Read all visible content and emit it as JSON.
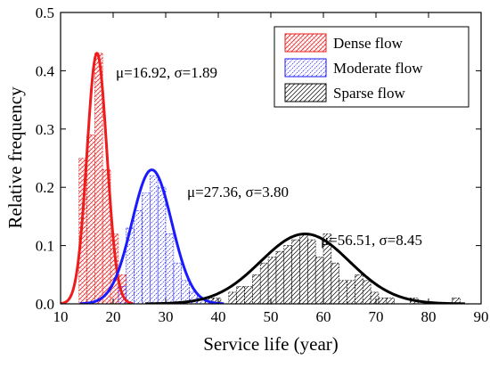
{
  "chart_data": {
    "type": "bar",
    "xlabel": "Service life (year)",
    "ylabel": "Relative frequency",
    "xlim": [
      10,
      90
    ],
    "ylim": [
      0,
      0.5
    ],
    "xticks": [
      10,
      20,
      30,
      40,
      50,
      60,
      70,
      80,
      90
    ],
    "yticks": [
      0.0,
      0.1,
      0.2,
      0.3,
      0.4,
      0.5
    ],
    "ytick_labels": [
      "0.0",
      "0.1",
      "0.2",
      "0.3",
      "0.4",
      "0.5"
    ],
    "grid": false,
    "legend_position": "top-right",
    "series": [
      {
        "name": "Dense flow",
        "color": "#ee1c1c",
        "hatch": "cross-dots",
        "bin_width": 1.5,
        "bins": [
          {
            "x": 14.25,
            "y": 0.25
          },
          {
            "x": 15.75,
            "y": 0.29
          },
          {
            "x": 17.25,
            "y": 0.43
          },
          {
            "x": 18.75,
            "y": 0.23
          },
          {
            "x": 20.25,
            "y": 0.12
          },
          {
            "x": 21.75,
            "y": 0.05
          }
        ],
        "fit": {
          "mu": 16.92,
          "sigma": 1.89,
          "peak": 0.43
        },
        "annotation": "μ=16.92, σ=1.89"
      },
      {
        "name": "Moderate flow",
        "color": "#1a1aff",
        "hatch": "diagonal-dots",
        "bin_width": 1.5,
        "bins": [
          {
            "x": 21.75,
            "y": 0.03
          },
          {
            "x": 23.25,
            "y": 0.13
          },
          {
            "x": 24.75,
            "y": 0.16
          },
          {
            "x": 26.25,
            "y": 0.19
          },
          {
            "x": 27.75,
            "y": 0.22
          },
          {
            "x": 29.25,
            "y": 0.2
          },
          {
            "x": 30.75,
            "y": 0.12
          },
          {
            "x": 32.25,
            "y": 0.07
          },
          {
            "x": 33.75,
            "y": 0.04
          },
          {
            "x": 35.25,
            "y": 0.02
          },
          {
            "x": 36.75,
            "y": 0.01
          }
        ],
        "fit": {
          "mu": 27.36,
          "sigma": 3.8,
          "peak": 0.23
        },
        "annotation": "μ=27.36, σ=3.80"
      },
      {
        "name": "Sparse flow",
        "color": "#000000",
        "hatch": "diagonal",
        "bin_width": 1.5,
        "bins": [
          {
            "x": 38.25,
            "y": 0.01
          },
          {
            "x": 39.75,
            "y": 0.01
          },
          {
            "x": 42.75,
            "y": 0.02
          },
          {
            "x": 44.25,
            "y": 0.03
          },
          {
            "x": 45.75,
            "y": 0.03
          },
          {
            "x": 47.25,
            "y": 0.05
          },
          {
            "x": 48.75,
            "y": 0.07
          },
          {
            "x": 50.25,
            "y": 0.08
          },
          {
            "x": 51.75,
            "y": 0.09
          },
          {
            "x": 53.25,
            "y": 0.1
          },
          {
            "x": 54.75,
            "y": 0.11
          },
          {
            "x": 56.25,
            "y": 0.12
          },
          {
            "x": 57.75,
            "y": 0.11
          },
          {
            "x": 59.25,
            "y": 0.08
          },
          {
            "x": 60.75,
            "y": 0.12
          },
          {
            "x": 62.25,
            "y": 0.07
          },
          {
            "x": 63.75,
            "y": 0.04
          },
          {
            "x": 65.25,
            "y": 0.04
          },
          {
            "x": 66.75,
            "y": 0.05
          },
          {
            "x": 68.25,
            "y": 0.04
          },
          {
            "x": 69.75,
            "y": 0.02
          },
          {
            "x": 71.25,
            "y": 0.01
          },
          {
            "x": 72.75,
            "y": 0.01
          },
          {
            "x": 77.25,
            "y": 0.01
          },
          {
            "x": 85.25,
            "y": 0.01
          }
        ],
        "fit": {
          "mu": 56.51,
          "sigma": 8.45,
          "peak": 0.12
        },
        "annotation": "μ=56.51, σ=8.45"
      }
    ]
  }
}
